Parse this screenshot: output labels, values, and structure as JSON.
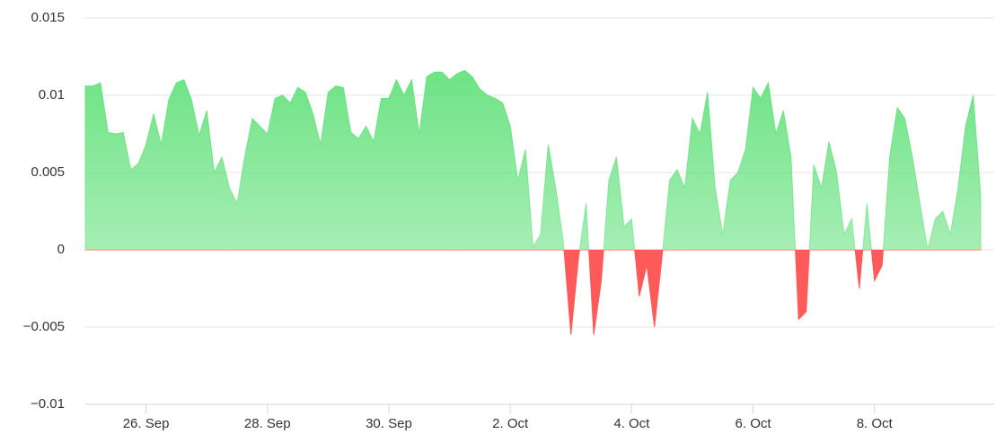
{
  "chart_data": {
    "type": "area",
    "categories": [
      null,
      null,
      null,
      null,
      null,
      null,
      null,
      null,
      "26. Sep",
      null,
      null,
      null,
      null,
      null,
      null,
      null,
      null,
      null,
      null,
      null,
      null,
      null,
      null,
      null,
      "28. Sep",
      null,
      null,
      null,
      null,
      null,
      null,
      null,
      null,
      null,
      null,
      null,
      null,
      null,
      null,
      null,
      "30. Sep",
      null,
      null,
      null,
      null,
      null,
      null,
      null,
      null,
      null,
      null,
      null,
      null,
      null,
      null,
      null,
      "2. Oct",
      null,
      null,
      null,
      null,
      null,
      null,
      null,
      null,
      null,
      null,
      null,
      null,
      null,
      null,
      null,
      "4. Oct",
      null,
      null,
      null,
      null,
      null,
      null,
      null,
      null,
      null,
      null,
      null,
      null,
      null,
      null,
      null,
      "6. Oct",
      null,
      null,
      null,
      null,
      null,
      null,
      null,
      null,
      null,
      null,
      null,
      null,
      null,
      null,
      null,
      "8. Oct",
      null,
      null,
      null,
      null,
      null,
      null,
      null,
      null,
      null,
      null,
      null,
      null,
      null,
      null
    ],
    "values": [
      0.0106,
      0.0106,
      0.0108,
      0.0076,
      0.0075,
      0.0076,
      0.0052,
      0.0056,
      0.0068,
      0.0088,
      0.0068,
      0.0097,
      0.0108,
      0.011,
      0.0097,
      0.0074,
      0.009,
      0.005,
      0.006,
      0.004,
      0.003,
      0.006,
      0.0085,
      0.008,
      0.0075,
      0.0098,
      0.01,
      0.0095,
      0.0105,
      0.0102,
      0.0088,
      0.0068,
      0.0102,
      0.0106,
      0.0105,
      0.0076,
      0.0072,
      0.008,
      0.007,
      0.0098,
      0.0098,
      0.011,
      0.01,
      0.011,
      0.0075,
      0.0112,
      0.0115,
      0.0115,
      0.011,
      0.0114,
      0.0116,
      0.0112,
      0.0104,
      0.01,
      0.0098,
      0.0095,
      0.008,
      0.0045,
      0.0065,
      0.0002,
      0.001,
      0.0068,
      0.004,
      0.0005,
      -0.0055,
      -0.0005,
      0.003,
      -0.0055,
      -0.002,
      0.0045,
      0.006,
      0.0015,
      0.002,
      -0.003,
      -0.001,
      -0.005,
      -0.0005,
      0.0045,
      0.0052,
      0.004,
      0.0085,
      0.0075,
      0.0102,
      0.004,
      0.001,
      0.0045,
      0.005,
      0.0065,
      0.0105,
      0.0098,
      0.0108,
      0.0075,
      0.009,
      0.006,
      -0.0045,
      -0.004,
      0.0055,
      0.004,
      0.007,
      0.005,
      0.001,
      0.002,
      -0.0025,
      0.003,
      -0.002,
      -0.001,
      0.006,
      0.0092,
      0.0085,
      0.006,
      0.003,
      0,
      0.002,
      0.0025,
      0.001,
      0.004,
      0.008,
      0.01,
      0.0035
    ],
    "color": "#5de077",
    "negative_color": "#ff5a5a",
    "ylim": [
      -0.01,
      0.015
    ],
    "yticks": [
      {
        "value": -0.01,
        "label": "−0.01"
      },
      {
        "value": -0.005,
        "label": "−0.005"
      },
      0,
      0.005,
      0.01,
      0.015
    ],
    "grid": true
  }
}
